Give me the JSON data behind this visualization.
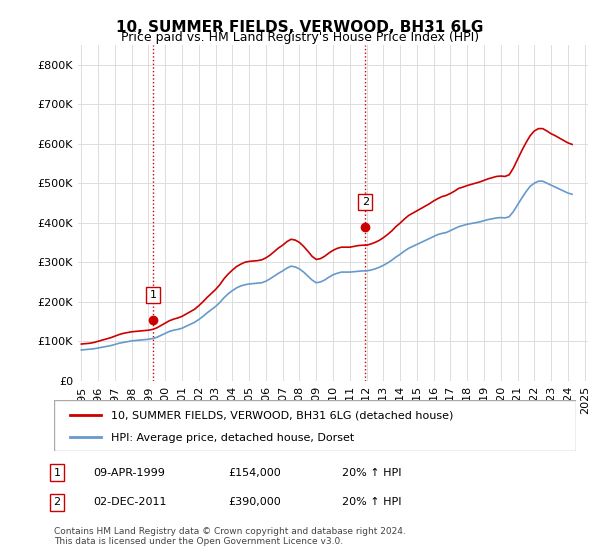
{
  "title": "10, SUMMER FIELDS, VERWOOD, BH31 6LG",
  "subtitle": "Price paid vs. HM Land Registry's House Price Index (HPI)",
  "ylabel": "",
  "ylim": [
    0,
    850000
  ],
  "yticks": [
    0,
    100000,
    200000,
    300000,
    400000,
    500000,
    600000,
    700000,
    800000
  ],
  "red_line_color": "#cc0000",
  "blue_line_color": "#6699cc",
  "sale_marker_color": "#cc0000",
  "sale1_x": 1999.27,
  "sale1_y": 154000,
  "sale1_label": "1",
  "sale2_x": 2011.92,
  "sale2_y": 390000,
  "sale2_label": "2",
  "vline1_x": 1999.27,
  "vline2_x": 2011.92,
  "legend_red": "10, SUMMER FIELDS, VERWOOD, BH31 6LG (detached house)",
  "legend_blue": "HPI: Average price, detached house, Dorset",
  "table_row1": [
    "1",
    "09-APR-1999",
    "£154,000",
    "20% ↑ HPI"
  ],
  "table_row2": [
    "2",
    "02-DEC-2011",
    "£390,000",
    "20% ↑ HPI"
  ],
  "footer": "Contains HM Land Registry data © Crown copyright and database right 2024.\nThis data is licensed under the Open Government Licence v3.0.",
  "hpi_years": [
    1995.0,
    1995.25,
    1995.5,
    1995.75,
    1996.0,
    1996.25,
    1996.5,
    1996.75,
    1997.0,
    1997.25,
    1997.5,
    1997.75,
    1998.0,
    1998.25,
    1998.5,
    1998.75,
    1999.0,
    1999.25,
    1999.5,
    1999.75,
    2000.0,
    2000.25,
    2000.5,
    2000.75,
    2001.0,
    2001.25,
    2001.5,
    2001.75,
    2002.0,
    2002.25,
    2002.5,
    2002.75,
    2003.0,
    2003.25,
    2003.5,
    2003.75,
    2004.0,
    2004.25,
    2004.5,
    2004.75,
    2005.0,
    2005.25,
    2005.5,
    2005.75,
    2006.0,
    2006.25,
    2006.5,
    2006.75,
    2007.0,
    2007.25,
    2007.5,
    2007.75,
    2008.0,
    2008.25,
    2008.5,
    2008.75,
    2009.0,
    2009.25,
    2009.5,
    2009.75,
    2010.0,
    2010.25,
    2010.5,
    2010.75,
    2011.0,
    2011.25,
    2011.5,
    2011.75,
    2012.0,
    2012.25,
    2012.5,
    2012.75,
    2013.0,
    2013.25,
    2013.5,
    2013.75,
    2014.0,
    2014.25,
    2014.5,
    2014.75,
    2015.0,
    2015.25,
    2015.5,
    2015.75,
    2016.0,
    2016.25,
    2016.5,
    2016.75,
    2017.0,
    2017.25,
    2017.5,
    2017.75,
    2018.0,
    2018.25,
    2018.5,
    2018.75,
    2019.0,
    2019.25,
    2019.5,
    2019.75,
    2020.0,
    2020.25,
    2020.5,
    2020.75,
    2021.0,
    2021.25,
    2021.5,
    2021.75,
    2022.0,
    2022.25,
    2022.5,
    2022.75,
    2023.0,
    2023.25,
    2023.5,
    2023.75,
    2024.0,
    2024.25
  ],
  "hpi_values": [
    78000,
    79000,
    80000,
    81000,
    83000,
    85000,
    87000,
    89000,
    92000,
    95000,
    97000,
    99000,
    101000,
    102000,
    103000,
    104000,
    105000,
    107000,
    110000,
    115000,
    120000,
    125000,
    128000,
    130000,
    133000,
    138000,
    143000,
    148000,
    155000,
    163000,
    172000,
    180000,
    188000,
    198000,
    210000,
    220000,
    228000,
    235000,
    240000,
    243000,
    245000,
    246000,
    247000,
    248000,
    252000,
    258000,
    265000,
    272000,
    278000,
    285000,
    290000,
    288000,
    283000,
    275000,
    265000,
    255000,
    248000,
    250000,
    255000,
    262000,
    268000,
    272000,
    275000,
    275000,
    275000,
    276000,
    277000,
    278000,
    278000,
    280000,
    283000,
    287000,
    292000,
    298000,
    305000,
    313000,
    320000,
    328000,
    335000,
    340000,
    345000,
    350000,
    355000,
    360000,
    365000,
    370000,
    373000,
    375000,
    380000,
    385000,
    390000,
    393000,
    396000,
    398000,
    400000,
    402000,
    405000,
    408000,
    410000,
    412000,
    413000,
    412000,
    415000,
    428000,
    445000,
    462000,
    478000,
    492000,
    500000,
    505000,
    505000,
    500000,
    495000,
    490000,
    485000,
    480000,
    475000,
    472000
  ],
  "red_years": [
    1995.0,
    1995.25,
    1995.5,
    1995.75,
    1996.0,
    1996.25,
    1996.5,
    1996.75,
    1997.0,
    1997.25,
    1997.5,
    1997.75,
    1998.0,
    1998.25,
    1998.5,
    1998.75,
    1999.0,
    1999.25,
    1999.5,
    1999.75,
    2000.0,
    2000.25,
    2000.5,
    2000.75,
    2001.0,
    2001.25,
    2001.5,
    2001.75,
    2002.0,
    2002.25,
    2002.5,
    2002.75,
    2003.0,
    2003.25,
    2003.5,
    2003.75,
    2004.0,
    2004.25,
    2004.5,
    2004.75,
    2005.0,
    2005.25,
    2005.5,
    2005.75,
    2006.0,
    2006.25,
    2006.5,
    2006.75,
    2007.0,
    2007.25,
    2007.5,
    2007.75,
    2008.0,
    2008.25,
    2008.5,
    2008.75,
    2009.0,
    2009.25,
    2009.5,
    2009.75,
    2010.0,
    2010.25,
    2010.5,
    2010.75,
    2011.0,
    2011.25,
    2011.5,
    2011.75,
    2012.0,
    2012.25,
    2012.5,
    2012.75,
    2013.0,
    2013.25,
    2013.5,
    2013.75,
    2014.0,
    2014.25,
    2014.5,
    2014.75,
    2015.0,
    2015.25,
    2015.5,
    2015.75,
    2016.0,
    2016.25,
    2016.5,
    2016.75,
    2017.0,
    2017.25,
    2017.5,
    2017.75,
    2018.0,
    2018.25,
    2018.5,
    2018.75,
    2019.0,
    2019.25,
    2019.5,
    2019.75,
    2020.0,
    2020.25,
    2020.5,
    2020.75,
    2021.0,
    2021.25,
    2021.5,
    2021.75,
    2022.0,
    2022.25,
    2022.5,
    2022.75,
    2023.0,
    2023.25,
    2023.5,
    2023.75,
    2024.0,
    2024.25
  ],
  "red_values": [
    93000,
    94000,
    95000,
    97000,
    100000,
    103000,
    106000,
    109000,
    113000,
    117000,
    120000,
    122000,
    124000,
    125000,
    126000,
    127000,
    128000,
    130000,
    134000,
    140000,
    146000,
    152000,
    156000,
    159000,
    163000,
    169000,
    175000,
    181000,
    190000,
    200000,
    211000,
    221000,
    231000,
    243000,
    258000,
    270000,
    280000,
    289000,
    295000,
    300000,
    302000,
    303000,
    304000,
    306000,
    311000,
    318000,
    327000,
    336000,
    343000,
    352000,
    358000,
    356000,
    350000,
    340000,
    328000,
    315000,
    307000,
    309000,
    315000,
    323000,
    330000,
    335000,
    338000,
    338000,
    338000,
    340000,
    342000,
    343000,
    343000,
    346000,
    350000,
    355000,
    362000,
    370000,
    379000,
    390000,
    399000,
    409000,
    418000,
    424000,
    430000,
    436000,
    442000,
    448000,
    455000,
    461000,
    466000,
    469000,
    474000,
    480000,
    487000,
    490000,
    494000,
    497000,
    500000,
    503000,
    507000,
    511000,
    514000,
    517000,
    518000,
    517000,
    521000,
    538000,
    560000,
    582000,
    602000,
    620000,
    632000,
    638000,
    638000,
    632000,
    625000,
    620000,
    614000,
    608000,
    602000,
    598000
  ],
  "xtick_years": [
    1995,
    1996,
    1997,
    1998,
    1999,
    2000,
    2001,
    2002,
    2003,
    2004,
    2005,
    2006,
    2007,
    2008,
    2009,
    2010,
    2011,
    2012,
    2013,
    2014,
    2015,
    2016,
    2017,
    2018,
    2019,
    2020,
    2021,
    2022,
    2023,
    2024,
    2025
  ],
  "background_color": "#ffffff",
  "grid_color": "#dddddd"
}
